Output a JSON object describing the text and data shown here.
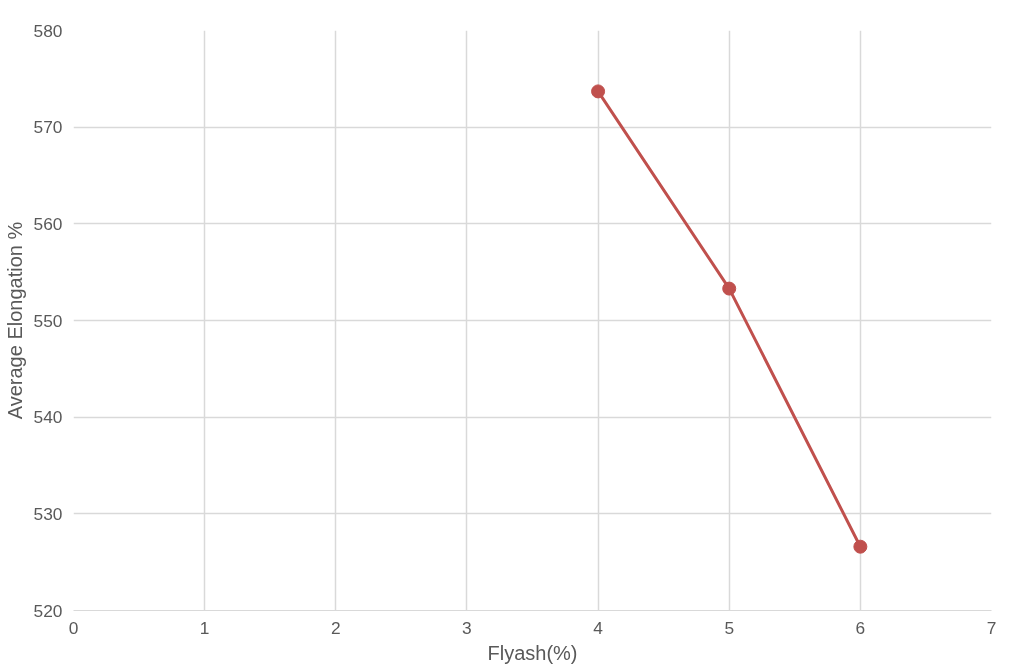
{
  "chart_data": {
    "type": "line",
    "xlabel": "Flyash(%)",
    "ylabel": "Average Elongation %",
    "x": [
      4,
      5,
      6
    ],
    "series": [
      {
        "color": "#c0504d",
        "values": [
          573.7,
          553.3,
          526.6
        ]
      }
    ],
    "xlim": [
      0,
      7
    ],
    "xticks": [
      0,
      1,
      2,
      3,
      4,
      5,
      6,
      7
    ],
    "ylim": [
      520,
      580
    ],
    "yticks": [
      520,
      530,
      540,
      550,
      560,
      570,
      580
    ],
    "grid": true,
    "marker": "circle",
    "line_style": "solid"
  }
}
